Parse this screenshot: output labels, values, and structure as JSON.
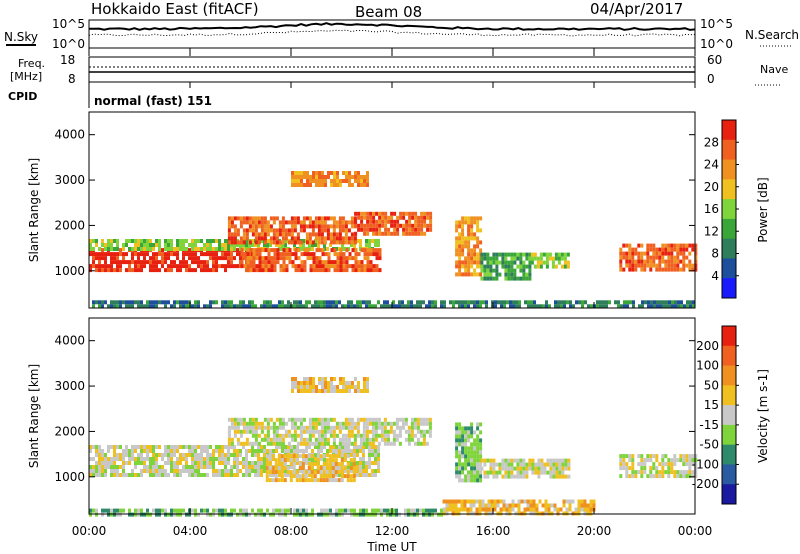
{
  "header": {
    "title": "Hokkaido East (fitACF)",
    "beam": "Beam 08",
    "date": "04/Apr/2017"
  },
  "noise_panel": {
    "left_label": "N.Sky",
    "right_label": "N.Search",
    "tick_top": "10^5",
    "tick_bottom": "10^0"
  },
  "freq_panel": {
    "left_label_line1": "Freq.",
    "left_label_line2": "[MHz]",
    "left_tick_top": "18",
    "left_tick_bottom": "8",
    "right_label": "Nave",
    "right_tick_top": "60",
    "right_tick_bottom": "0"
  },
  "cpid_panel": {
    "label": "CPID",
    "text": "normal (fast) 151"
  },
  "axes": {
    "xlabel": "Time UT",
    "ylabel": "Slant Range [km]",
    "x_ticks": [
      "00:00",
      "04:00",
      "08:00",
      "12:00",
      "16:00",
      "20:00",
      "00:00"
    ],
    "y_ticks": [
      "1000",
      "2000",
      "3000",
      "4000"
    ]
  },
  "chart_data": [
    {
      "type": "heatmap",
      "name": "power",
      "colorbar_label": "Power [dB]",
      "colorbar_ticks": [
        "4",
        "8",
        "12",
        "16",
        "20",
        "24",
        "28"
      ],
      "colors": [
        "#1a1aff",
        "#1e4f9c",
        "#2e7d5b",
        "#3aa63a",
        "#7ed43a",
        "#f0c020",
        "#f09020",
        "#f06020",
        "#e82010"
      ],
      "x_range_hours": [
        0,
        24
      ],
      "y_range_km": [
        180,
        4500
      ],
      "regions": [
        {
          "t0": 0.0,
          "t1": 6.5,
          "r0": 1000,
          "r1": 1500,
          "level": 8
        },
        {
          "t0": 0.0,
          "t1": 11.5,
          "r0": 1500,
          "r1": 1700,
          "level": 4
        },
        {
          "t0": 6.0,
          "t1": 11.5,
          "r0": 1000,
          "r1": 1500,
          "level": 7
        },
        {
          "t0": 5.5,
          "t1": 10.5,
          "r0": 1600,
          "r1": 2200,
          "level": 7
        },
        {
          "t0": 8.0,
          "t1": 11.0,
          "r0": 2900,
          "r1": 3200,
          "level": 6
        },
        {
          "t0": 10.5,
          "t1": 13.5,
          "r0": 1800,
          "r1": 2300,
          "level": 7
        },
        {
          "t0": 14.5,
          "t1": 15.5,
          "r0": 900,
          "r1": 2200,
          "level": 6
        },
        {
          "t0": 15.5,
          "t1": 17.5,
          "r0": 800,
          "r1": 1400,
          "level": 3
        },
        {
          "t0": 17.5,
          "t1": 19.0,
          "r0": 1100,
          "r1": 1400,
          "level": 4
        },
        {
          "t0": 21.0,
          "t1": 24.0,
          "r0": 1000,
          "r1": 1600,
          "level": 7
        },
        {
          "t0": 0.0,
          "t1": 24.0,
          "r0": 200,
          "r1": 350,
          "level": 2
        }
      ]
    },
    {
      "type": "heatmap",
      "name": "velocity",
      "colorbar_label": "Velocity [m s-1]",
      "colorbar_ticks": [
        "200",
        "100",
        "50",
        "15",
        "-15",
        "-50",
        "-100",
        "-200"
      ],
      "colors": [
        "#1a1aa0",
        "#2a5aa0",
        "#2e8a6a",
        "#7ed43a",
        "#c8c8c8",
        "#f0c020",
        "#f09020",
        "#f06020",
        "#e82010"
      ],
      "x_range_hours": [
        0,
        24
      ],
      "y_range_km": [
        180,
        4500
      ],
      "regions": [
        {
          "t0": 0.0,
          "t1": 11.5,
          "r0": 1000,
          "r1": 1700,
          "level": 4
        },
        {
          "t0": 5.5,
          "t1": 13.5,
          "r0": 1700,
          "r1": 2300,
          "level": 4
        },
        {
          "t0": 7.0,
          "t1": 10.5,
          "r0": 900,
          "r1": 1500,
          "level": 5
        },
        {
          "t0": 8.0,
          "t1": 11.0,
          "r0": 2900,
          "r1": 3200,
          "level": 5
        },
        {
          "t0": 14.5,
          "t1": 15.5,
          "r0": 900,
          "r1": 2200,
          "level": 3
        },
        {
          "t0": 15.5,
          "t1": 19.0,
          "r0": 1000,
          "r1": 1400,
          "level": 4
        },
        {
          "t0": 21.0,
          "t1": 24.0,
          "r0": 1000,
          "r1": 1500,
          "level": 4
        },
        {
          "t0": 14.0,
          "t1": 20.0,
          "r0": 200,
          "r1": 500,
          "level": 5
        },
        {
          "t0": 0.0,
          "t1": 14.0,
          "r0": 200,
          "r1": 300,
          "level": 3
        }
      ]
    }
  ]
}
